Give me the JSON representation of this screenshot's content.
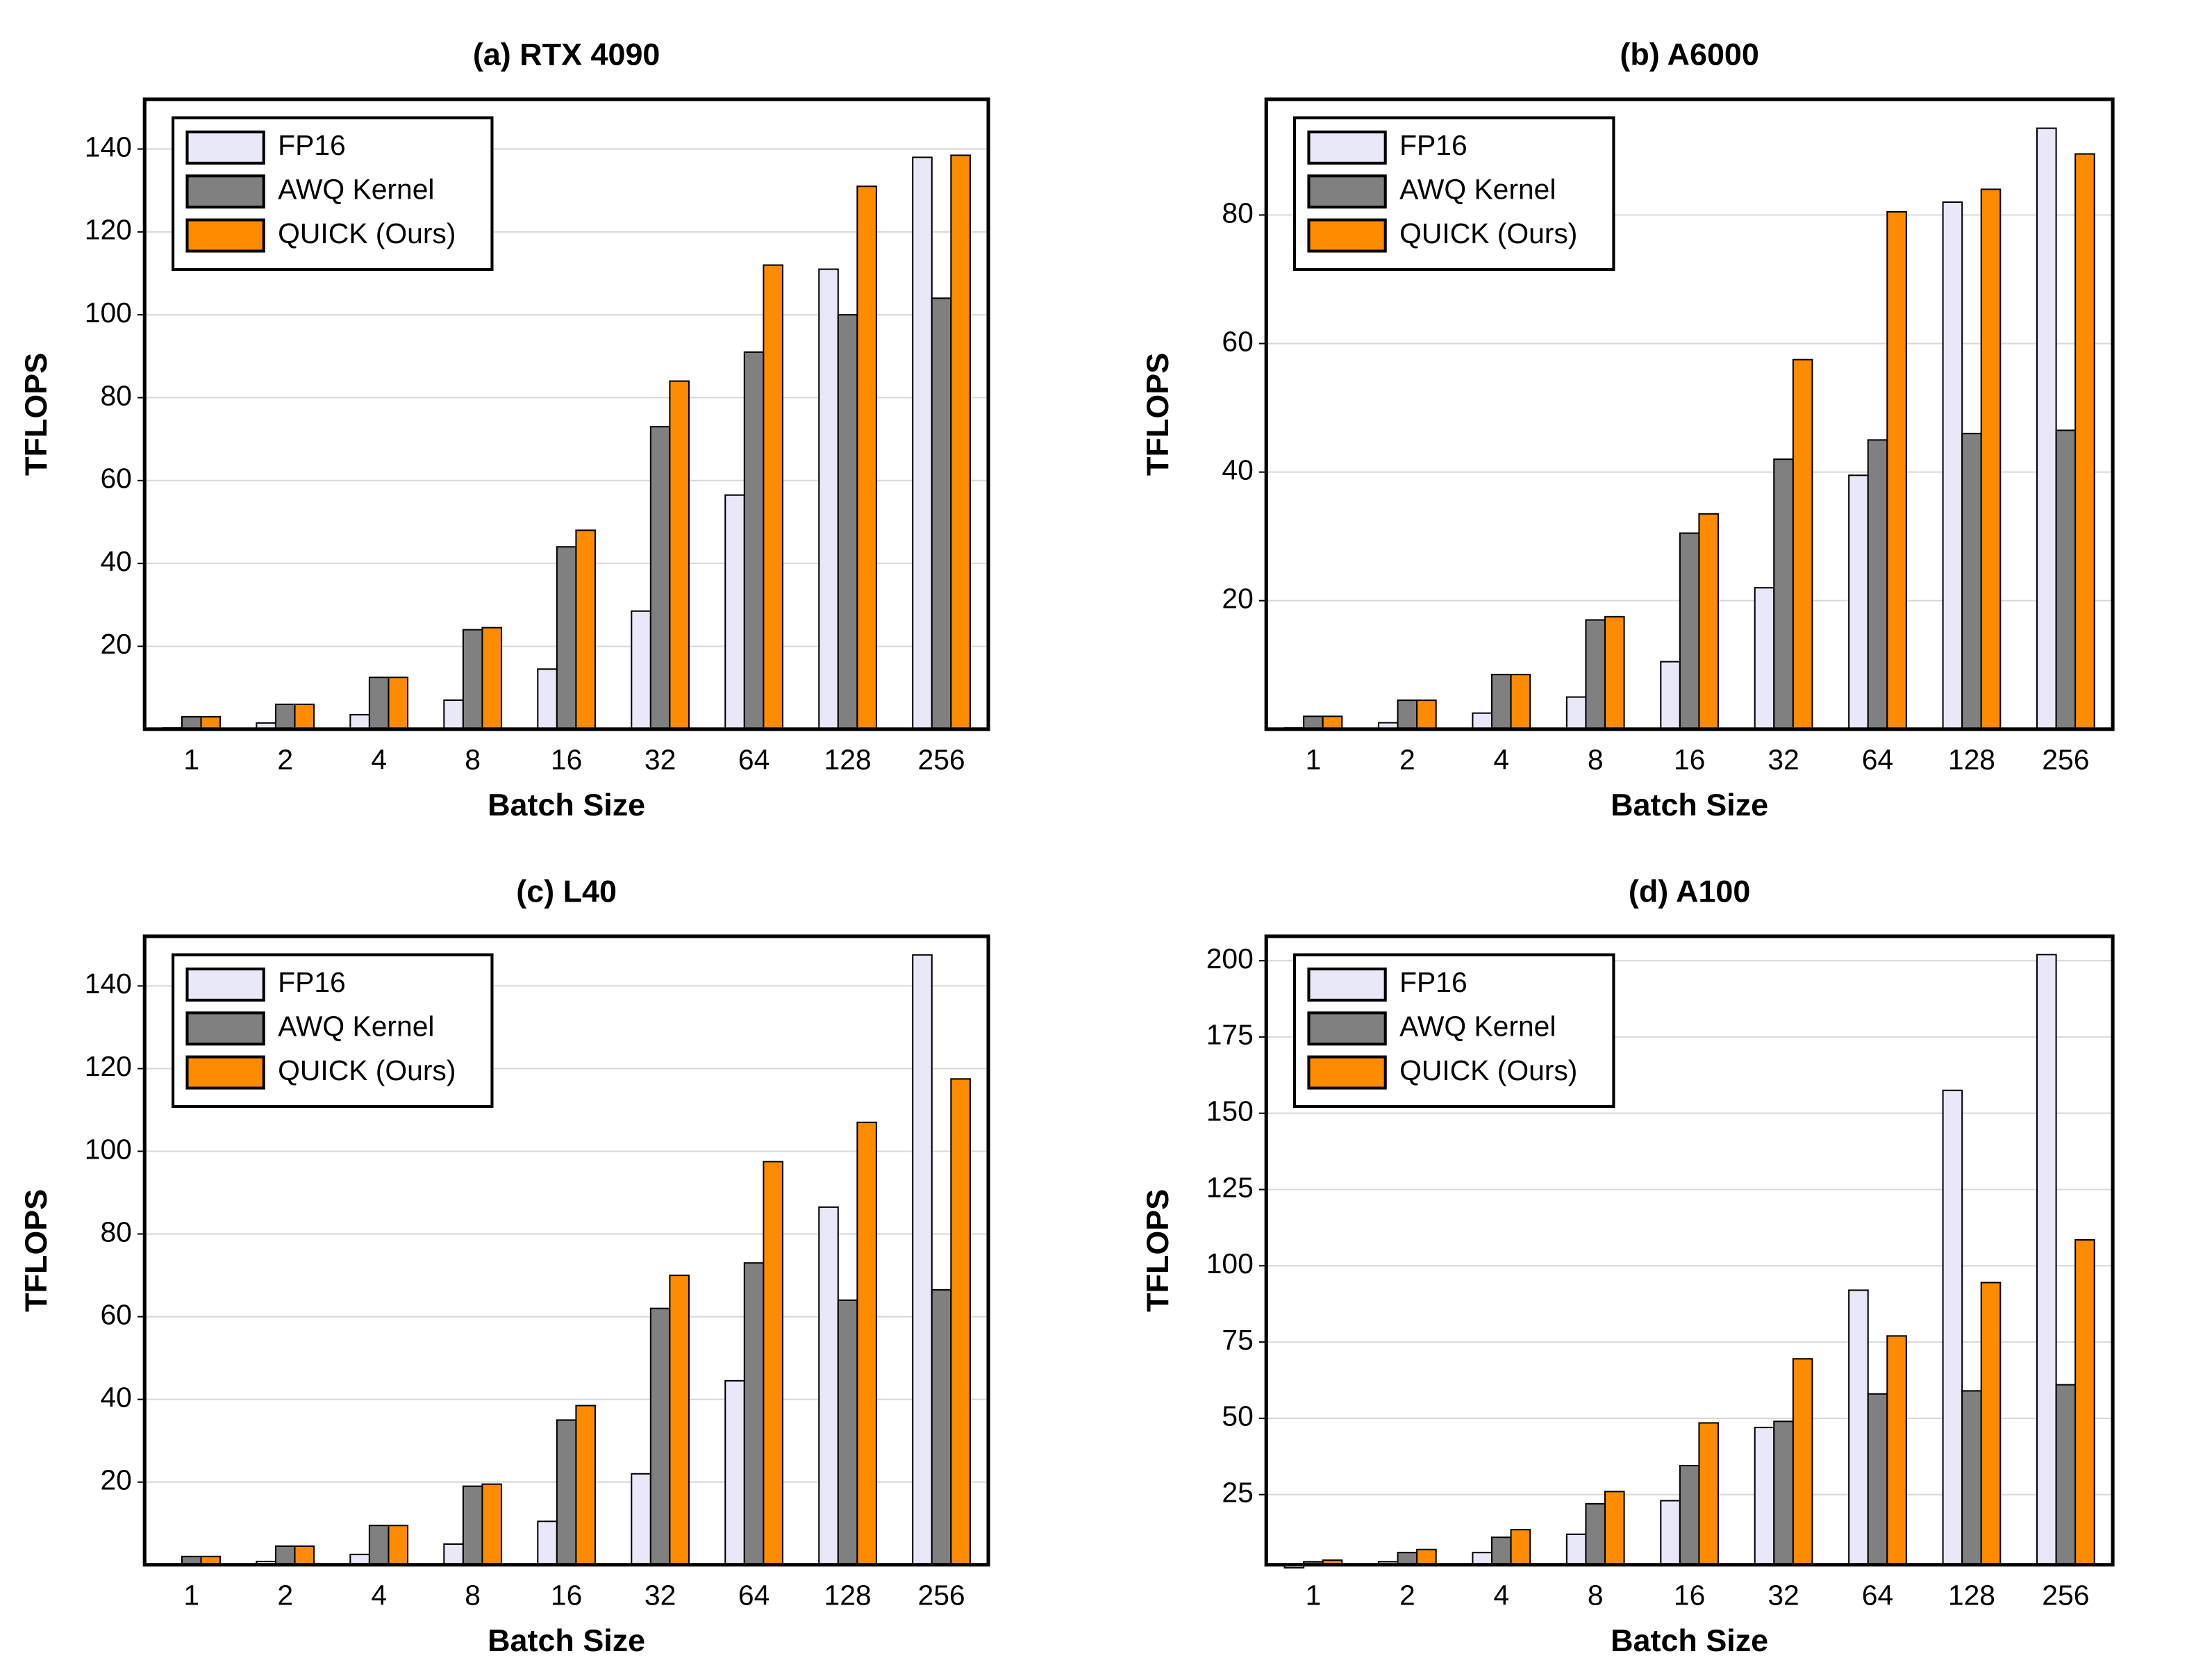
{
  "chart_data": [
    {
      "type": "bar",
      "title": "(a) RTX 4090",
      "xlabel": "Batch Size",
      "ylabel": "TFLOPS",
      "categories": [
        "1",
        "2",
        "4",
        "8",
        "16",
        "32",
        "64",
        "128",
        "256"
      ],
      "series": [
        {
          "name": "FP16",
          "color": "#e8e8f8",
          "values": [
            0.3,
            1.5,
            3.5,
            7,
            14.5,
            28.5,
            56.5,
            111,
            138
          ]
        },
        {
          "name": "AWQ Kernel",
          "color": "#808080",
          "values": [
            3,
            6,
            12.5,
            24,
            44,
            73,
            91,
            100,
            104
          ]
        },
        {
          "name": "QUICK (Ours)",
          "color": "#ff8c00",
          "values": [
            3,
            6,
            12.5,
            24.5,
            48,
            84,
            112,
            131,
            138.5
          ]
        }
      ],
      "ylim": [
        0,
        152
      ],
      "yticks": [
        20,
        40,
        60,
        80,
        100,
        120,
        140
      ],
      "grid": true,
      "legend": "upper left"
    },
    {
      "type": "bar",
      "title": "(b) A6000",
      "xlabel": "Batch Size",
      "ylabel": "TFLOPS",
      "categories": [
        "1",
        "2",
        "4",
        "8",
        "16",
        "32",
        "64",
        "128",
        "256"
      ],
      "series": [
        {
          "name": "FP16",
          "color": "#e8e8f8",
          "values": [
            0.2,
            1,
            2.5,
            5,
            10.5,
            22,
            39.5,
            82,
            93.5
          ]
        },
        {
          "name": "AWQ Kernel",
          "color": "#808080",
          "values": [
            2,
            4.5,
            8.5,
            17,
            30.5,
            42,
            45,
            46,
            46.5
          ]
        },
        {
          "name": "QUICK (Ours)",
          "color": "#ff8c00",
          "values": [
            2,
            4.5,
            8.5,
            17.5,
            33.5,
            57.5,
            80.5,
            84,
            89.5
          ]
        }
      ],
      "ylim": [
        0,
        98
      ],
      "yticks": [
        20,
        40,
        60,
        80
      ],
      "grid": true,
      "legend": "upper left"
    },
    {
      "type": "bar",
      "title": "(c) L40",
      "xlabel": "Batch Size",
      "ylabel": "TFLOPS",
      "categories": [
        "1",
        "2",
        "4",
        "8",
        "16",
        "32",
        "64",
        "128",
        "256"
      ],
      "series": [
        {
          "name": "FP16",
          "color": "#e8e8f8",
          "values": [
            0.2,
            0.8,
            2.5,
            5,
            10.5,
            22,
            44.5,
            86.5,
            147.5
          ]
        },
        {
          "name": "AWQ Kernel",
          "color": "#808080",
          "values": [
            2,
            4.5,
            9.5,
            19,
            35,
            62,
            73,
            64,
            66.5
          ]
        },
        {
          "name": "QUICK (Ours)",
          "color": "#ff8c00",
          "values": [
            2,
            4.5,
            9.5,
            19.5,
            38.5,
            70,
            97.5,
            107,
            117.5
          ]
        }
      ],
      "ylim": [
        0,
        152
      ],
      "yticks": [
        20,
        40,
        60,
        80,
        100,
        120,
        140
      ],
      "grid": true,
      "legend": "upper left"
    },
    {
      "type": "bar",
      "title": "(d) A100",
      "xlabel": "Batch Size",
      "ylabel": "TFLOPS",
      "categories": [
        "1",
        "2",
        "4",
        "8",
        "16",
        "32",
        "64",
        "128",
        "256"
      ],
      "series": [
        {
          "name": "FP16",
          "color": "#e8e8f8",
          "values": [
            1,
            3,
            6,
            12,
            23,
            47,
            92,
            157.5,
            202
          ]
        },
        {
          "name": "AWQ Kernel",
          "color": "#808080",
          "values": [
            3,
            6,
            11,
            22,
            34.5,
            49,
            58,
            59,
            61
          ]
        },
        {
          "name": "QUICK (Ours)",
          "color": "#ff8c00",
          "values": [
            3.5,
            7,
            13.5,
            26,
            48.5,
            69.5,
            77,
            94.5,
            108.5
          ]
        }
      ],
      "ylim": [
        2,
        208
      ],
      "yticks": [
        25,
        50,
        75,
        100,
        125,
        150,
        175,
        200
      ],
      "grid": true,
      "legend": "upper left"
    }
  ]
}
